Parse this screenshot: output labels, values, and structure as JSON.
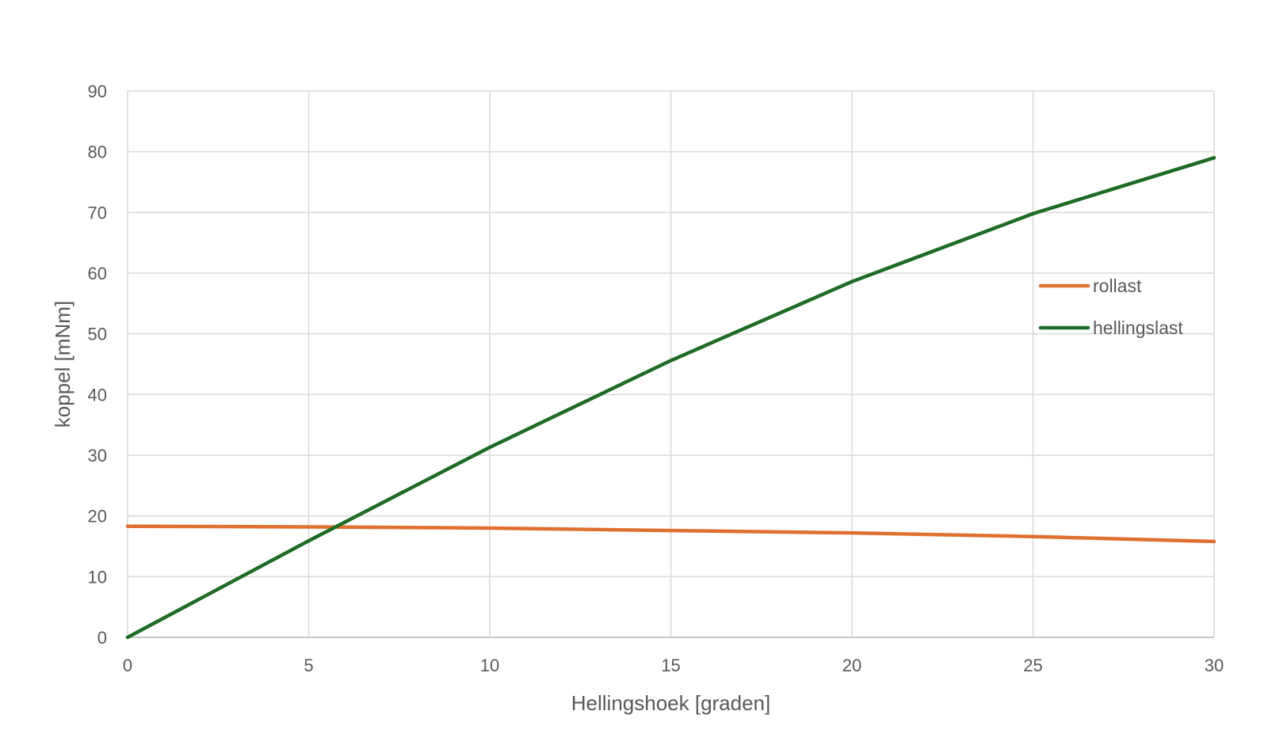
{
  "chart_data": {
    "type": "line",
    "title": "",
    "xlabel": "Hellingshoek [graden]",
    "ylabel": "koppel [mNm]",
    "xlim": [
      0,
      30
    ],
    "ylim": [
      0,
      90
    ],
    "xticks": [
      0,
      5,
      10,
      15,
      20,
      25,
      30
    ],
    "yticks": [
      0,
      10,
      20,
      30,
      40,
      50,
      60,
      70,
      80,
      90
    ],
    "grid": true,
    "legend_position": "right",
    "x": [
      0,
      5,
      10,
      15,
      20,
      25,
      30
    ],
    "series": [
      {
        "name": "rollast",
        "color": "#E07030",
        "values": [
          18.3,
          18.2,
          18.0,
          17.6,
          17.2,
          16.6,
          15.8
        ]
      },
      {
        "name": "hellingslast",
        "color": "#1E6B25",
        "values": [
          0,
          15.9,
          31.3,
          45.6,
          58.6,
          69.8,
          79.0
        ]
      }
    ]
  }
}
